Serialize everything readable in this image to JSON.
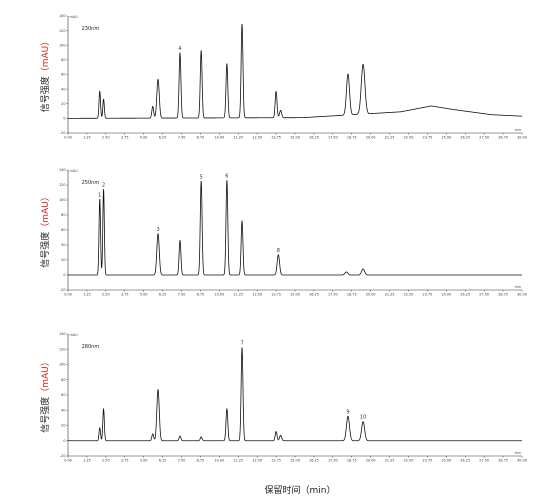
{
  "figure": {
    "xlabel": "保留时间（min）",
    "ylabel_main": "信号强度",
    "ylabel_unit": "（mAU）"
  },
  "chart_data": [
    {
      "type": "line",
      "title": "230nm",
      "y_unit": "mAU",
      "x_unit": "min",
      "xlim": [
        0,
        30
      ],
      "ylim": [
        -20,
        140
      ],
      "yticks": [
        -20,
        0,
        20,
        40,
        60,
        80,
        100,
        120,
        140
      ],
      "xticks": [
        "0.00",
        "1.25",
        "2.50",
        "3.75",
        "5.00",
        "6.25",
        "7.50",
        "8.75",
        "10.00",
        "11.25",
        "12.50",
        "13.75",
        "15.00",
        "16.25",
        "17.50",
        "18.75",
        "20.00",
        "21.25",
        "22.50",
        "23.75",
        "25.00",
        "26.25",
        "27.50",
        "28.75",
        "30.00"
      ],
      "baseline": [
        [
          0,
          0
        ],
        [
          15.5,
          1
        ],
        [
          18,
          4
        ],
        [
          22,
          9
        ],
        [
          24,
          17
        ],
        [
          25.5,
          12
        ],
        [
          28,
          5
        ],
        [
          30,
          3
        ]
      ],
      "peaks": [
        {
          "rt": 2.1,
          "height": 37,
          "width": 0.05
        },
        {
          "rt": 2.35,
          "height": 26,
          "width": 0.05
        },
        {
          "rt": 5.6,
          "height": 16,
          "width": 0.06
        },
        {
          "rt": 5.95,
          "height": 53,
          "width": 0.08
        },
        {
          "rt": 7.4,
          "height": 89,
          "width": 0.06,
          "label": "4"
        },
        {
          "rt": 8.8,
          "height": 92,
          "width": 0.06
        },
        {
          "rt": 10.5,
          "height": 74,
          "width": 0.06
        },
        {
          "rt": 11.5,
          "height": 128,
          "width": 0.06
        },
        {
          "rt": 13.75,
          "height": 36,
          "width": 0.06
        },
        {
          "rt": 14.05,
          "height": 10,
          "width": 0.07
        },
        {
          "rt": 18.5,
          "height": 56,
          "width": 0.1
        },
        {
          "rt": 19.5,
          "height": 68,
          "width": 0.12
        }
      ]
    },
    {
      "type": "line",
      "title": "250nm",
      "y_unit": "mAU",
      "x_unit": "min",
      "xlim": [
        0,
        30
      ],
      "ylim": [
        -20,
        140
      ],
      "yticks": [
        -20,
        0,
        20,
        40,
        60,
        80,
        100,
        120,
        140
      ],
      "xticks": [
        "0.00",
        "1.25",
        "2.50",
        "3.75",
        "5.00",
        "6.25",
        "7.50",
        "8.75",
        "10.00",
        "11.25",
        "12.50",
        "13.75",
        "15.00",
        "16.25",
        "17.50",
        "18.75",
        "20.00",
        "21.25",
        "22.50",
        "23.75",
        "25.00",
        "26.25",
        "27.50",
        "28.75",
        "30.00"
      ],
      "baseline": [
        [
          0,
          0
        ],
        [
          30,
          0
        ]
      ],
      "peaks": [
        {
          "rt": 2.1,
          "height": 101,
          "width": 0.05,
          "label": "1"
        },
        {
          "rt": 2.35,
          "height": 114,
          "width": 0.05,
          "label": "2"
        },
        {
          "rt": 5.95,
          "height": 55,
          "width": 0.08,
          "label": "3"
        },
        {
          "rt": 7.4,
          "height": 46,
          "width": 0.06
        },
        {
          "rt": 8.8,
          "height": 125,
          "width": 0.06,
          "label": "5"
        },
        {
          "rt": 10.5,
          "height": 126,
          "width": 0.06,
          "label": "6"
        },
        {
          "rt": 11.5,
          "height": 72,
          "width": 0.06
        },
        {
          "rt": 13.9,
          "height": 27,
          "width": 0.08,
          "label": "8"
        },
        {
          "rt": 18.4,
          "height": 4,
          "width": 0.1
        },
        {
          "rt": 19.5,
          "height": 8,
          "width": 0.1
        }
      ]
    },
    {
      "type": "line",
      "title": "280nm",
      "y_unit": "mAU",
      "x_unit": "min",
      "xlim": [
        0,
        30
      ],
      "ylim": [
        -20,
        140
      ],
      "yticks": [
        -20,
        0,
        20,
        40,
        60,
        80,
        100,
        120,
        140
      ],
      "xticks": [
        "0.00",
        "1.25",
        "2.50",
        "3.75",
        "5.00",
        "6.25",
        "7.50",
        "8.75",
        "10.00",
        "11.25",
        "12.50",
        "13.75",
        "15.00",
        "16.25",
        "17.50",
        "18.75",
        "20.00",
        "21.25",
        "22.50",
        "23.75",
        "25.00",
        "26.25",
        "27.50",
        "28.75",
        "30.00"
      ],
      "baseline": [
        [
          0,
          0
        ],
        [
          30,
          0
        ]
      ],
      "peaks": [
        {
          "rt": 2.1,
          "height": 17,
          "width": 0.05
        },
        {
          "rt": 2.35,
          "height": 42,
          "width": 0.05
        },
        {
          "rt": 5.6,
          "height": 9,
          "width": 0.06
        },
        {
          "rt": 5.95,
          "height": 67,
          "width": 0.08
        },
        {
          "rt": 7.4,
          "height": 6,
          "width": 0.06
        },
        {
          "rt": 8.8,
          "height": 5,
          "width": 0.06
        },
        {
          "rt": 10.5,
          "height": 42,
          "width": 0.06
        },
        {
          "rt": 11.5,
          "height": 122,
          "width": 0.06,
          "label": "7"
        },
        {
          "rt": 13.75,
          "height": 12,
          "width": 0.06
        },
        {
          "rt": 14.05,
          "height": 7,
          "width": 0.07
        },
        {
          "rt": 18.5,
          "height": 32,
          "width": 0.1,
          "label": "9"
        },
        {
          "rt": 19.5,
          "height": 25,
          "width": 0.1,
          "label": "10"
        }
      ]
    }
  ]
}
